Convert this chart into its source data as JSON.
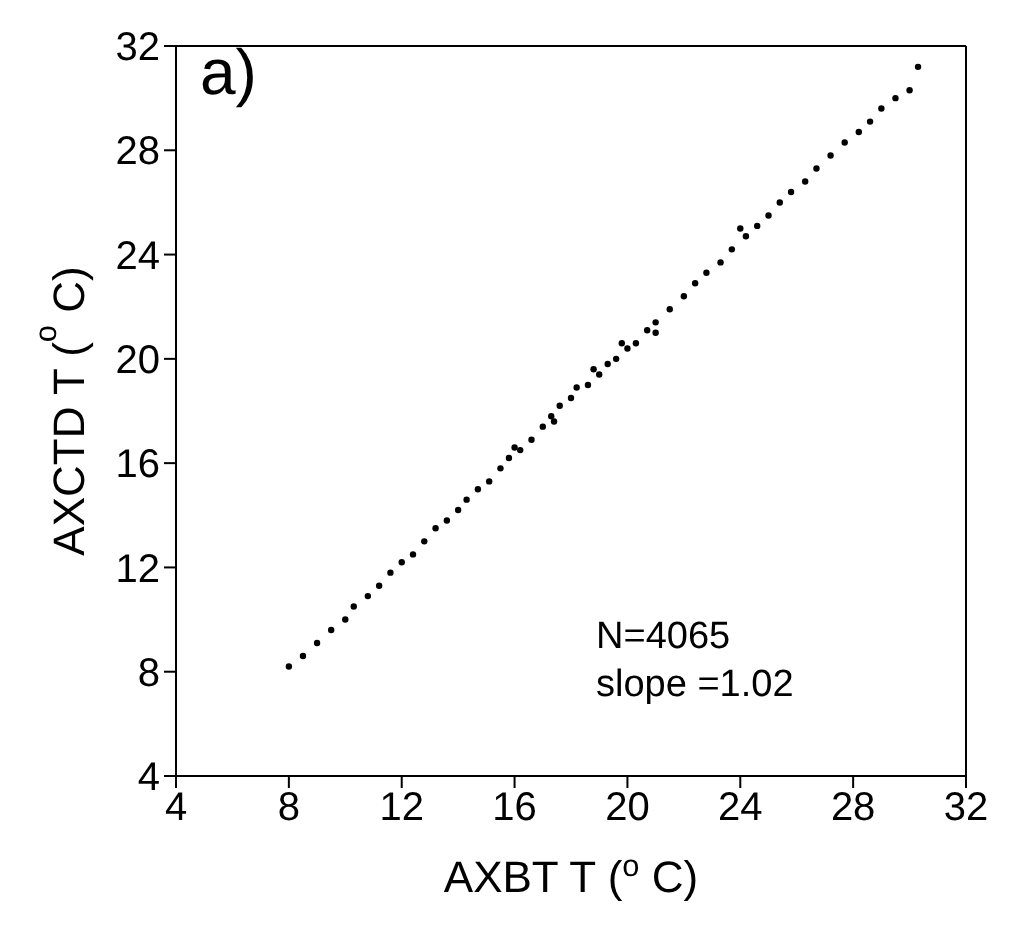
{
  "chart_data": {
    "type": "scatter",
    "xlabel": "AXBT T ($^{o}$C)",
    "ylabel": "AXCTD T ($^{o}$C)",
    "xlim": [
      4,
      32
    ],
    "xticks": [
      4,
      8,
      12,
      16,
      20,
      24,
      28,
      32
    ],
    "ylim": [
      4,
      32
    ],
    "yticks": [
      4,
      8,
      12,
      16,
      20,
      24,
      28,
      32
    ],
    "grid": false,
    "legend": false,
    "marker": "circle",
    "annotations": [
      "a)",
      "N=4065",
      "slope =1.02"
    ],
    "series": [
      {
        "color": "#000000",
        "x": [
          8,
          8.5,
          9,
          9.5,
          10,
          10.3,
          10.8,
          11.2,
          11.6,
          12,
          12.4,
          12.8,
          13.2,
          13.6,
          14,
          14.3,
          14.7,
          15.1,
          15.5,
          15.8,
          16,
          16.2,
          16.6,
          17,
          17.3,
          17.4,
          17.6,
          18,
          18.2,
          18.6,
          18.8,
          19,
          19.3,
          19.6,
          19.8,
          20,
          20.3,
          20.7,
          21,
          21,
          21.5,
          22,
          22.4,
          22.8,
          23.3,
          23.7,
          24,
          24.2,
          24.6,
          25,
          25.4,
          25.8,
          26.3,
          26.7,
          27.2,
          27.7,
          28.2,
          28.6,
          29,
          29.5,
          30,
          30.3
        ],
        "values": [
          8.2,
          8.6,
          9.1,
          9.6,
          10,
          10.5,
          10.9,
          11.3,
          11.8,
          12.2,
          12.5,
          13,
          13.5,
          13.8,
          14.2,
          14.6,
          15,
          15.3,
          15.8,
          16.2,
          16.6,
          16.5,
          16.9,
          17.4,
          17.8,
          17.6,
          18.2,
          18.5,
          18.9,
          19,
          19.6,
          19.4,
          19.8,
          20,
          20.6,
          20.4,
          20.6,
          21.1,
          21.4,
          21,
          21.9,
          22.4,
          22.9,
          23.3,
          23.7,
          24.2,
          25,
          24.7,
          25.1,
          25.5,
          26,
          26.4,
          26.8,
          27.3,
          27.8,
          28.3,
          28.7,
          29.1,
          29.6,
          30,
          30.3,
          31.2
        ]
      }
    ]
  }
}
